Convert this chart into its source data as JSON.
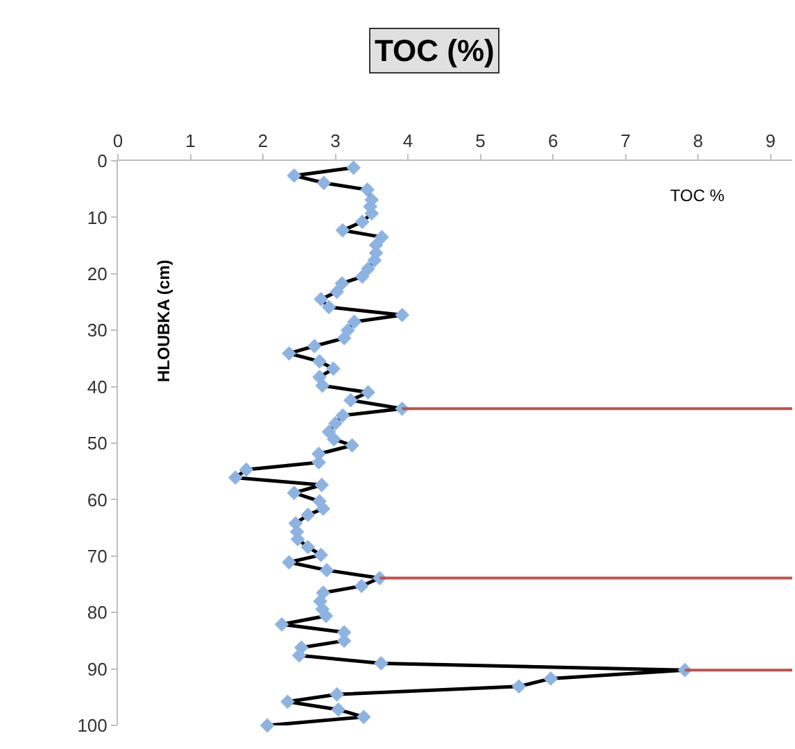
{
  "chart_data": {
    "type": "line",
    "title": "TOC (%)",
    "xlabel": "TOC %",
    "ylabel": "HLOUBKA (cm)",
    "xlim": [
      0,
      9.3
    ],
    "xticks": [
      0,
      1,
      2,
      3,
      4,
      5,
      6,
      7,
      8,
      9
    ],
    "ylim": [
      100,
      0
    ],
    "yticks": [
      0,
      10,
      20,
      30,
      40,
      50,
      60,
      70,
      80,
      90,
      100
    ],
    "marker": "diamond",
    "line_style": "solid",
    "series": [
      {
        "color": "#8db3e2",
        "x": [
          3.25,
          2.43,
          2.84,
          3.44,
          3.5,
          3.48,
          3.5,
          3.37,
          3.1,
          3.64,
          3.56,
          3.56,
          3.54,
          3.45,
          3.37,
          3.09,
          3.02,
          2.8,
          2.91,
          3.92,
          3.26,
          3.17,
          3.12,
          2.71,
          2.36,
          2.78,
          2.97,
          2.78,
          2.82,
          3.45,
          3.21,
          3.92,
          3.1,
          3.0,
          2.91,
          2.98,
          3.23,
          2.77,
          2.77,
          1.77,
          1.62,
          2.81,
          2.43,
          2.78,
          2.83,
          2.62,
          2.45,
          2.47,
          2.48,
          2.62,
          2.8,
          2.36,
          2.88,
          3.61,
          3.36,
          2.83,
          2.79,
          2.82,
          2.87,
          2.26,
          3.12,
          3.12,
          2.53,
          2.5,
          3.63,
          7.82,
          5.97,
          5.53,
          3.02,
          2.34,
          3.04,
          3.39,
          2.06
        ],
        "values": [
          1.2,
          2.6,
          3.9,
          5.1,
          6.9,
          8.1,
          9.3,
          10.8,
          12.3,
          13.5,
          14.9,
          16.3,
          17.6,
          19.1,
          20.5,
          21.7,
          23.2,
          24.5,
          25.9,
          27.3,
          28.5,
          30.0,
          31.4,
          32.8,
          34.1,
          35.5,
          36.8,
          38.3,
          39.8,
          41.0,
          42.4,
          43.9,
          45.1,
          46.5,
          48.0,
          49.3,
          50.4,
          51.9,
          53.4,
          54.7,
          56.1,
          57.4,
          58.8,
          60.3,
          61.6,
          62.7,
          64.2,
          65.7,
          67.0,
          68.4,
          69.8,
          71.1,
          72.5,
          73.9,
          75.3,
          76.5,
          78.0,
          79.4,
          80.6,
          82.1,
          83.5,
          85.0,
          86.2,
          87.6,
          89.0,
          90.2,
          91.7,
          93.1,
          94.5,
          95.8,
          97.2,
          98.5,
          100.0
        ]
      },
      {
        "color": "#c0504d",
        "marker": "none",
        "x": [
          3.92,
          9.3
        ],
        "values": [
          43.9,
          43.9
        ]
      },
      {
        "color": "#c0504d",
        "marker": "none",
        "x": [
          3.61,
          9.3
        ],
        "values": [
          73.9,
          73.9
        ]
      },
      {
        "color": "#c0504d",
        "marker": "none",
        "x": [
          7.82,
          9.3
        ],
        "values": [
          90.2,
          90.2
        ]
      }
    ]
  }
}
